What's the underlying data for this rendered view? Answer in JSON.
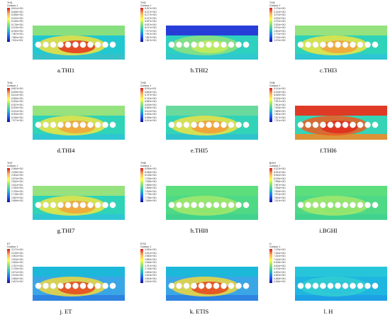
{
  "panels": [
    {
      "caption": "a.THI1",
      "title": [
        "THI1",
        "Contour 1"
      ],
      "ticks": [
        "8.541e+001",
        "8.468e+001",
        "8.395e+001",
        "8.322e+001",
        "8.249e+001",
        "8.176e+001",
        "8.103e+001",
        "8.030e+001",
        "7.957e+001",
        "7.884e+001",
        "7.811e+001"
      ],
      "theme": "warm_center"
    },
    {
      "caption": "b.THI2",
      "title": [
        "THI2",
        "Contour 1"
      ],
      "ticks": [
        "8.257e+001",
        "8.217e+001",
        "8.177e+001",
        "8.137e+001",
        "8.097e+001",
        "8.057e+001",
        "8.017e+001",
        "7.977e+001",
        "7.937e+001",
        "7.897e+001",
        "7.857e+001"
      ],
      "theme": "green_blue"
    },
    {
      "caption": "c.THI3",
      "title": [
        "THI3",
        "Contour 1"
      ],
      "ticks": [
        "3.170e+001",
        "3.120e+001",
        "3.070e+001",
        "3.020e+001",
        "2.970e+001",
        "2.920e+001",
        "2.870e+001",
        "2.820e+001",
        "2.770e+001",
        "2.720e+001",
        "2.670e+001"
      ],
      "theme": "green_yellow"
    },
    {
      "caption": "d.THI4",
      "title": [
        "THI4",
        "Contour 1"
      ],
      "ticks": [
        "8.557e+001",
        "8.499e+001",
        "8.441e+001",
        "8.383e+001",
        "8.325e+001",
        "8.267e+001",
        "8.209e+001",
        "8.151e+001",
        "8.093e+001",
        "8.035e+001",
        "7.977e+001"
      ],
      "theme": "green_yellow"
    },
    {
      "caption": "e.THI5",
      "title": [
        "THI5",
        "Contour 1"
      ],
      "ticks": [
        "8.911e+001",
        "8.854e+001",
        "8.797e+001",
        "8.740e+001",
        "8.683e+001",
        "8.626e+001",
        "8.569e+001",
        "8.512e+001",
        "8.455e+001",
        "8.398e+001",
        "8.341e+001"
      ],
      "theme": "teal_orange"
    },
    {
      "caption": "f.THI6",
      "title": [
        "THI6",
        "Contour 1"
      ],
      "ticks": [
        "8.141e+001",
        "8.105e+001",
        "8.069e+001",
        "8.033e+001",
        "7.997e+001",
        "7.961e+001",
        "7.925e+001",
        "7.889e+001",
        "7.853e+001",
        "7.817e+001",
        "7.781e+001"
      ],
      "theme": "red_full"
    },
    {
      "caption": "g.THI7",
      "title": [
        "THI7",
        "Contour 1"
      ],
      "ticks": [
        "2.966e+001",
        "2.935e+001",
        "2.904e+001",
        "2.873e+001",
        "2.842e+001",
        "2.811e+001",
        "2.780e+001",
        "2.749e+001",
        "2.718e+001",
        "2.687e+001",
        "2.656e+001"
      ],
      "theme": "green_yellow"
    },
    {
      "caption": "h.THI8",
      "title": [
        "THI8",
        "Contour 1"
      ],
      "ticks": [
        "8.098e+001",
        "8.058e+001",
        "8.018e+001",
        "7.978e+001",
        "7.938e+001",
        "7.898e+001",
        "7.858e+001",
        "7.818e+001",
        "7.778e+001",
        "7.738e+001",
        "7.698e+001"
      ],
      "theme": "green_plain"
    },
    {
      "caption": "i.BGHI",
      "title": [
        "BGHI",
        "Contour 1"
      ],
      "ticks": [
        "8.122e+001",
        "8.091e+001",
        "8.060e+001",
        "8.029e+001",
        "7.998e+001",
        "7.967e+001",
        "7.936e+001",
        "7.905e+001",
        "7.874e+001",
        "7.843e+001",
        "7.812e+001"
      ],
      "theme": "green_plain"
    },
    {
      "caption": "j. ET",
      "title": [
        "ET",
        "Contour 1"
      ],
      "ticks": [
        "3.077e+001",
        "3.019e+001",
        "2.961e+001",
        "2.903e+001",
        "2.845e+001",
        "2.787e+001",
        "2.729e+001",
        "2.671e+001",
        "2.613e+001",
        "2.555e+001",
        "2.497e+001"
      ],
      "theme": "et"
    },
    {
      "caption": "k. ETIS",
      "title": [
        "ETIS",
        "Contour 1"
      ],
      "ticks": [
        "3.052e+001",
        "3.001e+001",
        "2.950e+001",
        "2.899e+001",
        "2.848e+001",
        "2.797e+001",
        "2.746e+001",
        "2.695e+001",
        "2.644e+001",
        "2.593e+001",
        "2.542e+001"
      ],
      "theme": "et"
    },
    {
      "caption": "l. H",
      "title": [
        "H",
        "Contour 1"
      ],
      "ticks": [
        "7.376e+001",
        "7.264e+001",
        "7.152e+001",
        "7.040e+001",
        "6.928e+001",
        "6.816e+001",
        "6.704e+001",
        "6.592e+001",
        "6.480e+001",
        "6.368e+001",
        "6.256e+001"
      ],
      "theme": "blue_teal"
    }
  ],
  "themes": {
    "warm_center": {
      "bg": "#22c8d0",
      "top": "#8ee07a",
      "mid": "#f5e23a",
      "hot": "#e8321e",
      "floor": "#39c0c8"
    },
    "green_blue": {
      "bg": "#2ed0c0",
      "top": "#2636d8",
      "mid": "#8fe27d",
      "hot": "#c6ec5a",
      "floor": "#30c6d0"
    },
    "green_yellow": {
      "bg": "#2fd3b8",
      "top": "#9be37a",
      "mid": "#f0e540",
      "hot": "#f2a23c",
      "floor": "#2fc4d6"
    },
    "teal_orange": {
      "bg": "#32d4b8",
      "top": "#6ed99c",
      "mid": "#f1e241",
      "hot": "#f39a38",
      "floor": "#2fc0cf"
    },
    "red_full": {
      "bg": "#36d3b6",
      "top": "#e8321e",
      "mid": "#ef5b1f",
      "hot": "#e22a1c",
      "floor": "#f08b2a"
    },
    "green_plain": {
      "bg": "#4fd986",
      "top": "#5ede7c",
      "mid": "#a6e86a",
      "hot": "#8ee46f",
      "floor": "#3fd08f"
    },
    "et": {
      "bg": "#3aa6e6",
      "top": "#1ab8d9",
      "mid": "#f2d83a",
      "hot": "#e8441e",
      "floor": "#2d7fe0"
    },
    "blue_teal": {
      "bg": "#1fb6e0",
      "top": "#28c6d8",
      "mid": "#33cfd2",
      "hot": "#2bc6d8",
      "floor": "#1d9fe6"
    }
  }
}
